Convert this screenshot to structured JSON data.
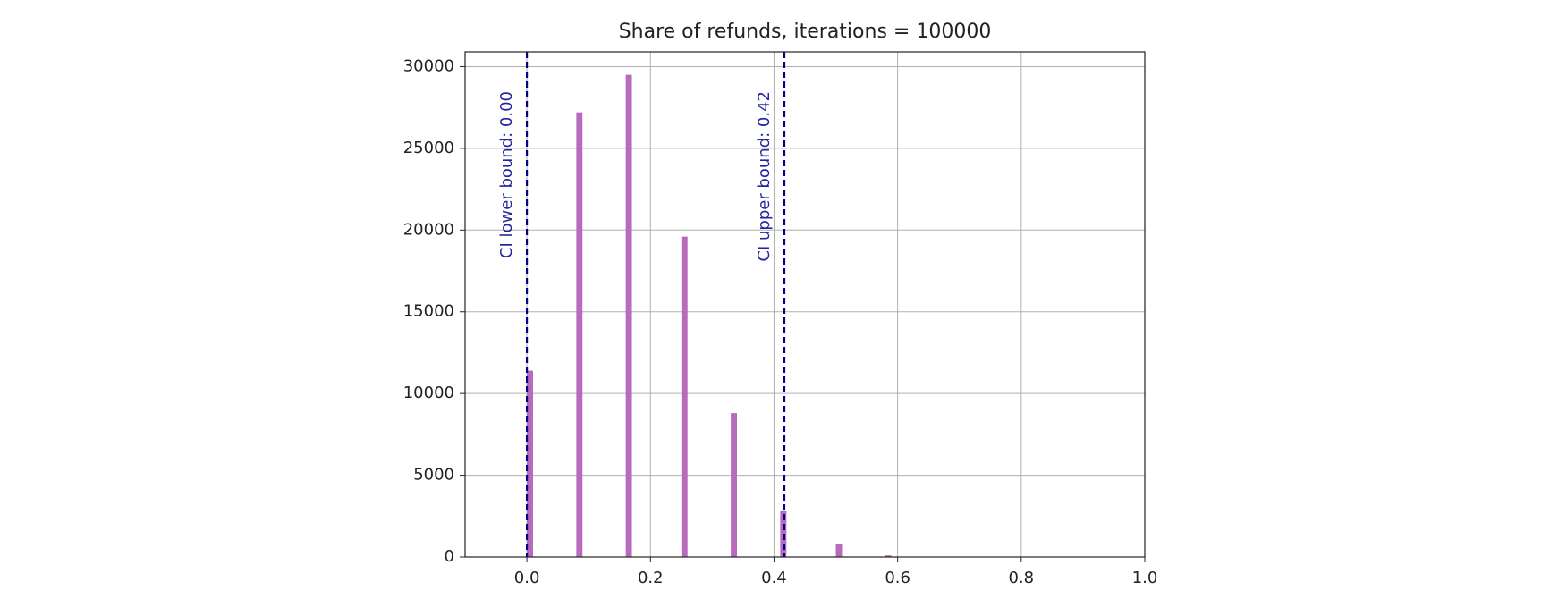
{
  "chart_data": {
    "type": "histogram",
    "title": "Share of refunds, iterations = 100000",
    "bins": [
      0,
      0.01,
      0.02,
      0.03,
      0.04,
      0.05,
      0.06,
      0.07,
      0.08,
      0.09,
      0.1,
      0.11,
      0.12,
      0.13,
      0.14,
      0.15,
      0.16,
      0.17,
      0.18,
      0.19,
      0.2,
      0.21,
      0.22,
      0.23,
      0.24,
      0.25,
      0.26,
      0.27,
      0.28,
      0.29,
      0.3,
      0.31,
      0.32,
      0.33,
      0.34,
      0.35,
      0.36,
      0.37,
      0.38,
      0.39,
      0.4,
      0.41,
      0.42,
      0.43,
      0.44,
      0.45,
      0.46,
      0.47,
      0.48,
      0.49,
      0.5,
      0.51,
      0.52,
      0.53,
      0.54,
      0.55,
      0.56,
      0.57,
      0.58,
      0.59,
      0.6,
      0.61,
      0.62,
      0.63,
      0.64,
      0.65,
      0.66,
      0.67,
      0.68,
      0.69,
      0.7,
      0.71,
      0.72,
      0.73,
      0.74,
      0.75,
      0.76,
      0.77,
      0.78,
      0.79,
      0.8,
      0.81,
      0.82,
      0.83,
      0.84,
      0.85,
      0.86,
      0.87,
      0.88,
      0.89,
      0.9,
      0.91,
      0.92,
      0.93,
      0.94,
      0.95,
      0.96,
      0.97,
      0.98,
      0.99,
      1
    ],
    "values": [
      11400,
      0,
      0,
      0,
      0,
      0,
      0,
      0,
      27200,
      0,
      0,
      0,
      0,
      0,
      0,
      0,
      29500,
      0,
      0,
      0,
      0,
      0,
      0,
      0,
      0,
      19600,
      0,
      0,
      0,
      0,
      0,
      0,
      0,
      8800,
      0,
      0,
      0,
      0,
      0,
      0,
      0,
      2800,
      0,
      0,
      0,
      0,
      0,
      0,
      0,
      0,
      800,
      0,
      0,
      0,
      0,
      0,
      0,
      0,
      100,
      0,
      0,
      0,
      0,
      0,
      0,
      0,
      10,
      0,
      0,
      0,
      0,
      0,
      0,
      0,
      0,
      0,
      0,
      0,
      0,
      0,
      0,
      0,
      0,
      0,
      0,
      0,
      0,
      0,
      0,
      0,
      0,
      0,
      0,
      0,
      0,
      0,
      0,
      0,
      0,
      0
    ],
    "color": "#b86bbd",
    "xlim": [
      -0.1,
      1.0
    ],
    "xticks": [
      {
        "value": 0,
        "label": "0.0"
      },
      0.2,
      0.4,
      0.6,
      0.8,
      {
        "value": 1,
        "label": "1.0"
      }
    ],
    "ylim": [
      0,
      30900
    ],
    "yticks": [
      0,
      5000,
      10000,
      15000,
      20000,
      25000,
      30000
    ],
    "grid": true,
    "vlines": [
      {
        "x": 0,
        "label": "CI lower bound: 0.00",
        "color": "#00008b"
      },
      {
        "x": 0.4167,
        "label": "CI upper bound: 0.42",
        "color": "#00008b"
      }
    ]
  }
}
